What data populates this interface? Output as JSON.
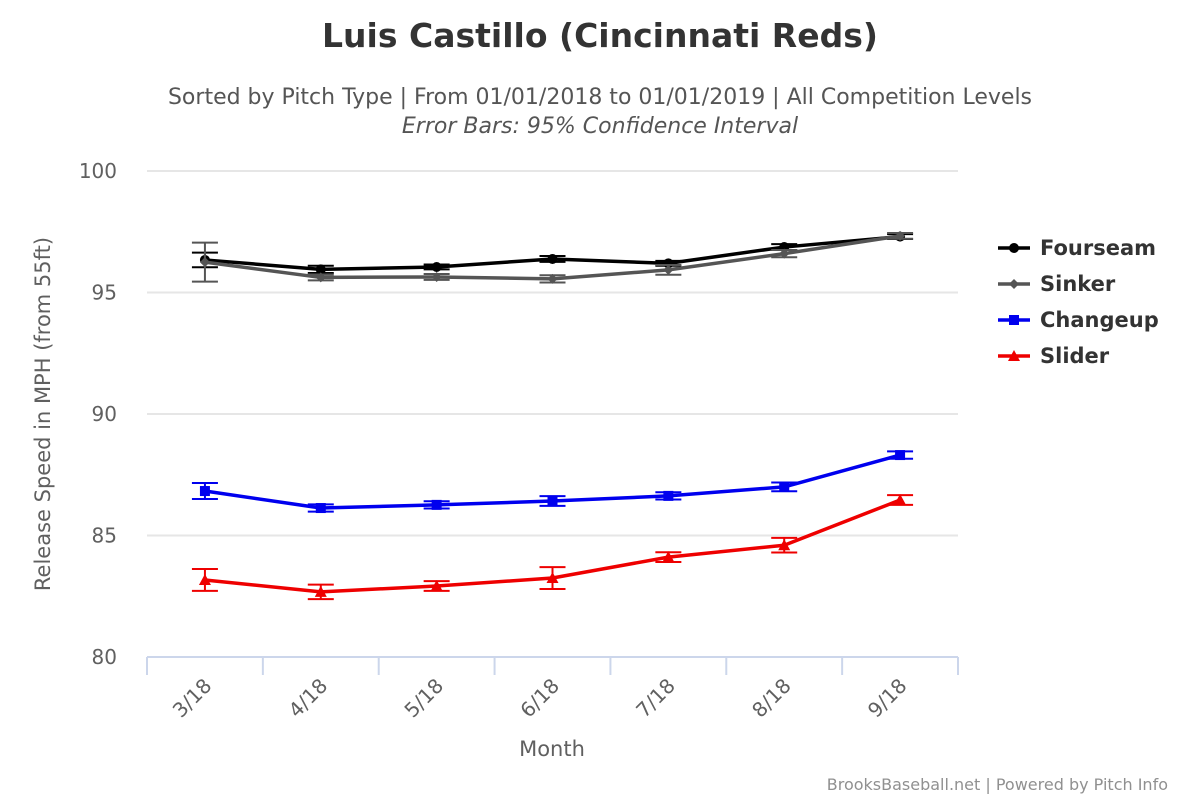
{
  "chart_data": {
    "type": "line",
    "title": "Luis Castillo (Cincinnati Reds)",
    "subtitle": "Sorted by Pitch Type | From 01/01/2018 to 01/01/2019 | All Competition Levels",
    "subtitle2": "Error Bars: 95% Confidence Interval",
    "xlabel": "Month",
    "ylabel": "Release Speed in MPH (from 55ft)",
    "categories": [
      "3/18",
      "4/18",
      "5/18",
      "6/18",
      "7/18",
      "8/18",
      "9/18"
    ],
    "ylim": [
      80,
      100
    ],
    "yticks": [
      "80",
      "85",
      "90",
      "95",
      "100"
    ],
    "grid": true,
    "legend_position": "right",
    "credits": "BrooksBaseball.net | Powered by Pitch Info",
    "series": [
      {
        "name": "Fourseam",
        "color": "#000000",
        "marker": "circle",
        "values": [
          96.34,
          95.95,
          96.05,
          96.38,
          96.2,
          96.87,
          97.3
        ],
        "error": [
          0.3,
          0.15,
          0.1,
          0.12,
          0.1,
          0.12,
          0.1
        ]
      },
      {
        "name": "Sinker",
        "color": "#555555",
        "marker": "diamond",
        "values": [
          96.25,
          95.62,
          95.64,
          95.56,
          95.93,
          96.6,
          97.33
        ],
        "error": [
          0.8,
          0.12,
          0.12,
          0.15,
          0.2,
          0.15,
          0.12
        ]
      },
      {
        "name": "Changeup",
        "color": "#0000ee",
        "marker": "square",
        "values": [
          86.83,
          86.13,
          86.26,
          86.42,
          86.63,
          87.0,
          88.31
        ],
        "error": [
          0.33,
          0.15,
          0.15,
          0.2,
          0.15,
          0.18,
          0.15
        ]
      },
      {
        "name": "Slider",
        "color": "#ee0000",
        "marker": "triangle",
        "values": [
          83.17,
          82.68,
          82.92,
          83.25,
          84.11,
          84.6,
          86.46
        ],
        "error": [
          0.45,
          0.3,
          0.2,
          0.45,
          0.2,
          0.3,
          0.2
        ]
      }
    ]
  }
}
